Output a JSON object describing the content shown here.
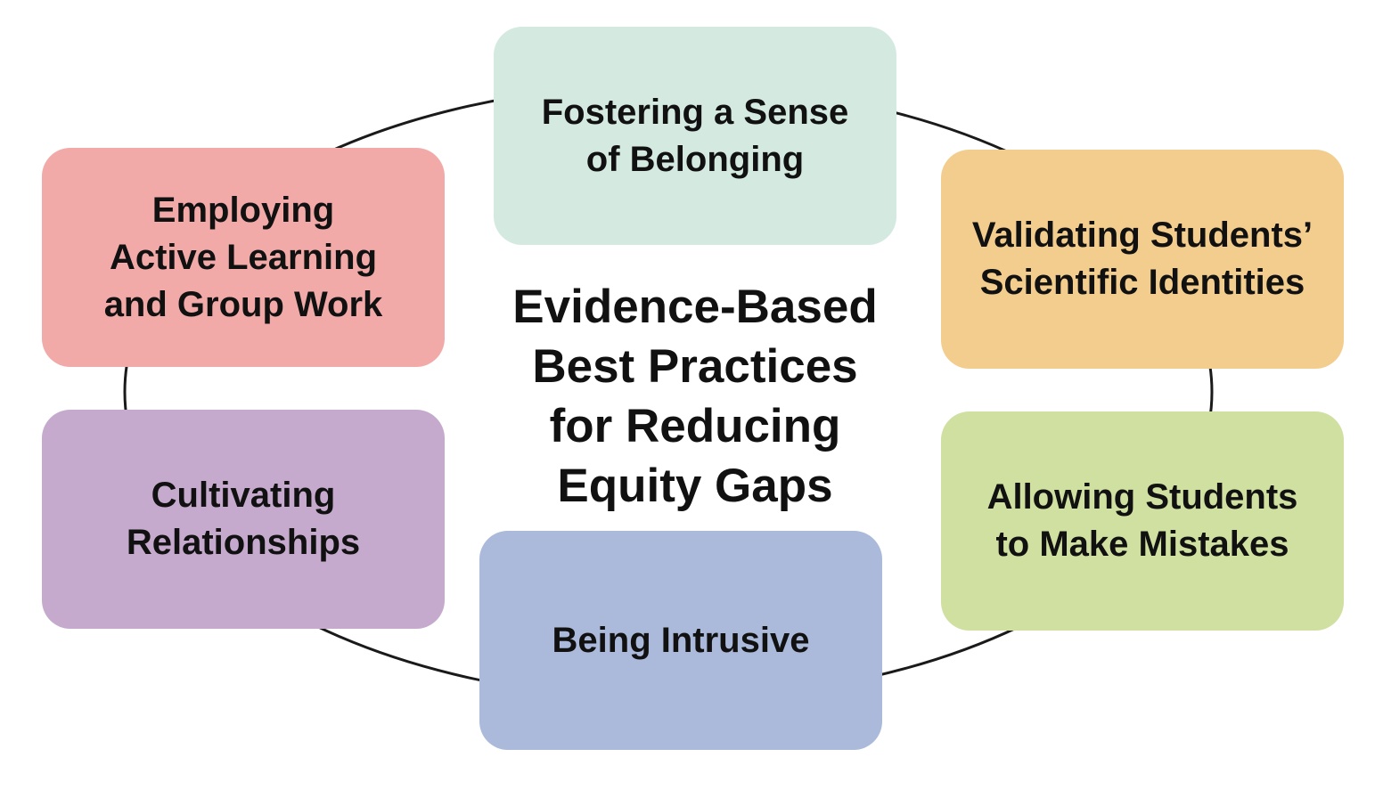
{
  "diagram": {
    "center_title": "Evidence-Based\nBest Practices\nfor Reducing\nEquity Gaps",
    "practices": [
      {
        "id": "belonging",
        "label": "Fostering a Sense\nof Belonging",
        "color": "#d4e9e0"
      },
      {
        "id": "active-learning",
        "label": "Employing\nActive Learning\nand Group Work",
        "color": "#f2aaa9"
      },
      {
        "id": "validating",
        "label": "Validating Students’\nScientific Identities",
        "color": "#f3cd8e"
      },
      {
        "id": "relationships",
        "label": "Cultivating\nRelationships",
        "color": "#c6aacd"
      },
      {
        "id": "mistakes",
        "label": "Allowing Students\nto Make Mistakes",
        "color": "#cfe0a0"
      },
      {
        "id": "intrusive",
        "label": "Being Intrusive",
        "color": "#abbada"
      }
    ],
    "ring_color": "#1a1a1a"
  }
}
